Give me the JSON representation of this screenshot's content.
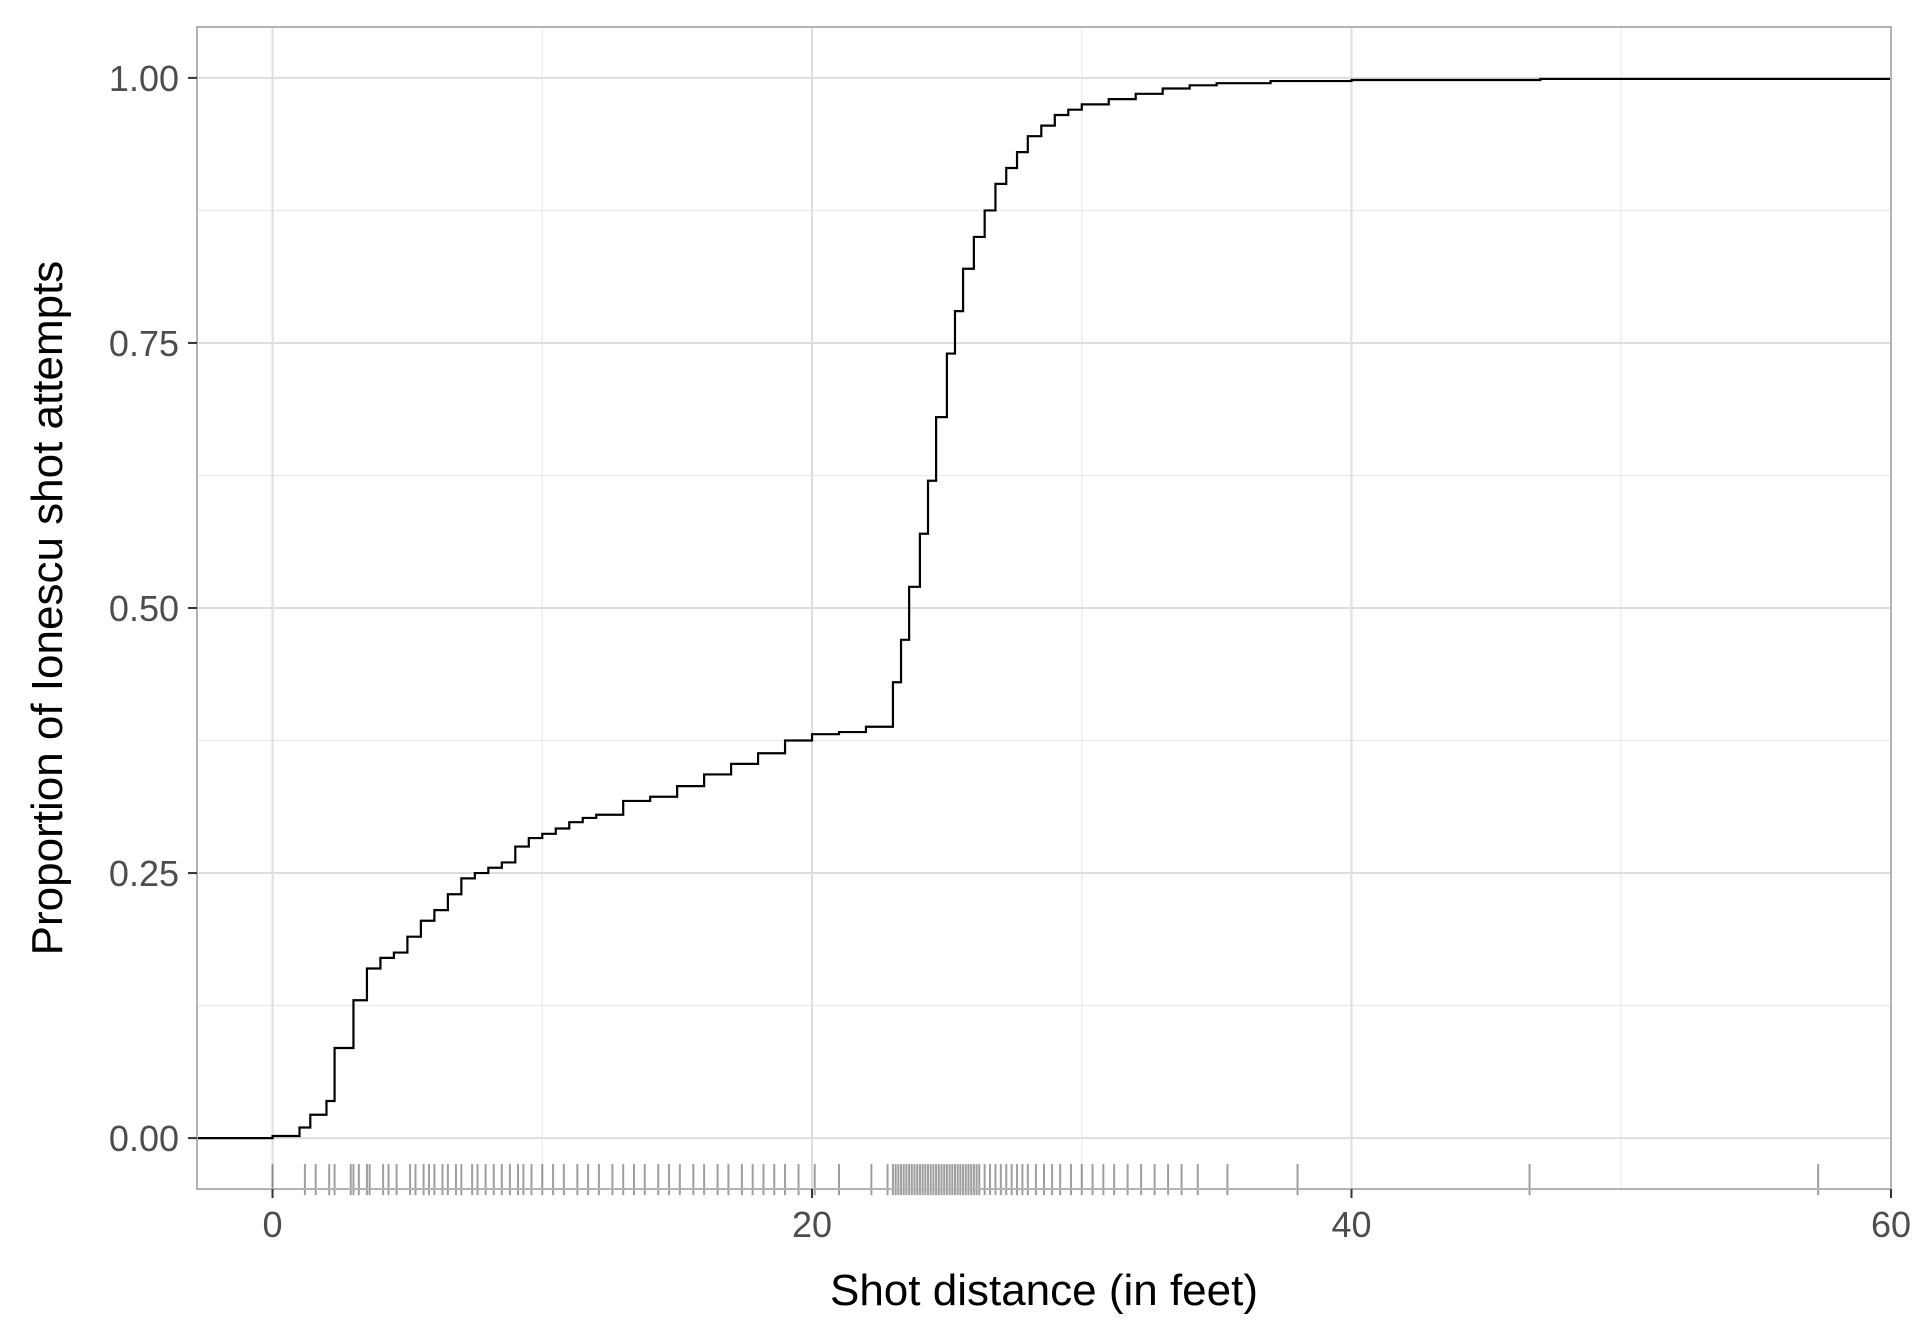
{
  "chart_data": {
    "type": "line",
    "title": "",
    "xlabel": "Shot distance (in feet)",
    "ylabel": "Proportion of Ionescu shot attempts",
    "xlim": [
      -2.8,
      60
    ],
    "ylim": [
      -0.048,
      1.048
    ],
    "x_ticks": [
      0,
      20,
      40,
      60
    ],
    "x_tick_labels": [
      "0",
      "20",
      "40",
      "60"
    ],
    "y_ticks": [
      0,
      0.25,
      0.5,
      0.75,
      1
    ],
    "y_tick_labels": [
      "0.00",
      "0.25",
      "0.50",
      "0.75",
      "1.00"
    ],
    "grid": true,
    "legend": "none",
    "colors": {
      "line": "#000000",
      "grid": "#dedede",
      "panel_border": "#b3b3b3",
      "rug": "#000000"
    },
    "series": [
      {
        "step": "post",
        "x": [
          -2.8,
          0,
          1,
          1.4,
          2,
          2.3,
          3,
          3.5,
          4,
          4.5,
          5,
          5.5,
          6,
          6.5,
          7,
          7.5,
          8,
          8.5,
          9,
          9.5,
          10,
          10.5,
          11,
          11.5,
          12,
          13,
          14,
          15,
          16,
          17,
          18,
          19,
          20,
          21,
          22,
          23,
          23.3,
          23.6,
          24,
          24.3,
          24.6,
          25,
          25.3,
          25.6,
          26,
          26.4,
          26.8,
          27.2,
          27.6,
          28,
          28.5,
          29,
          29.5,
          30,
          31,
          32,
          33,
          34,
          35,
          37,
          40,
          47,
          60
        ],
        "y": [
          0,
          0.002,
          0.01,
          0.022,
          0.035,
          0.085,
          0.13,
          0.16,
          0.17,
          0.175,
          0.19,
          0.205,
          0.215,
          0.23,
          0.245,
          0.25,
          0.255,
          0.26,
          0.275,
          0.283,
          0.287,
          0.292,
          0.298,
          0.302,
          0.305,
          0.318,
          0.322,
          0.332,
          0.343,
          0.353,
          0.363,
          0.375,
          0.381,
          0.383,
          0.388,
          0.43,
          0.47,
          0.52,
          0.57,
          0.62,
          0.68,
          0.74,
          0.78,
          0.82,
          0.85,
          0.875,
          0.9,
          0.915,
          0.93,
          0.945,
          0.955,
          0.965,
          0.97,
          0.975,
          0.98,
          0.985,
          0.99,
          0.993,
          0.995,
          0.997,
          0.998,
          0.999,
          1
        ]
      }
    ],
    "rug_x": [
      0,
      1.2,
      1.6,
      2.1,
      2.3,
      2.9,
      3.0,
      3.2,
      3.5,
      3.6,
      4.1,
      4.3,
      4.6,
      5.1,
      5.3,
      5.6,
      5.8,
      6.0,
      6.3,
      6.5,
      6.8,
      7.0,
      7.4,
      7.6,
      7.9,
      8.2,
      8.5,
      8.8,
      9.1,
      9.3,
      9.6,
      10.0,
      10.4,
      10.8,
      11.3,
      11.7,
      12.1,
      12.6,
      13.0,
      13.4,
      13.8,
      14.3,
      14.7,
      15.1,
      15.6,
      16.0,
      16.5,
      16.9,
      17.4,
      17.8,
      18.2,
      18.6,
      19.0,
      19.5,
      20.1,
      21.0,
      22.2,
      22.8,
      23.0,
      23.1,
      23.2,
      23.3,
      23.4,
      23.5,
      23.6,
      23.7,
      23.8,
      23.9,
      24.0,
      24.1,
      24.2,
      24.3,
      24.4,
      24.5,
      24.6,
      24.7,
      24.8,
      24.9,
      25.0,
      25.1,
      25.2,
      25.3,
      25.4,
      25.5,
      25.6,
      25.7,
      25.8,
      25.9,
      26.0,
      26.1,
      26.2,
      26.4,
      26.6,
      26.8,
      27.0,
      27.2,
      27.4,
      27.6,
      27.8,
      28.0,
      28.3,
      28.6,
      28.9,
      29.2,
      29.6,
      30.0,
      30.4,
      30.8,
      31.2,
      31.7,
      32.2,
      32.7,
      33.2,
      33.7,
      34.3,
      35.4,
      38.0,
      46.6,
      57.3
    ]
  }
}
